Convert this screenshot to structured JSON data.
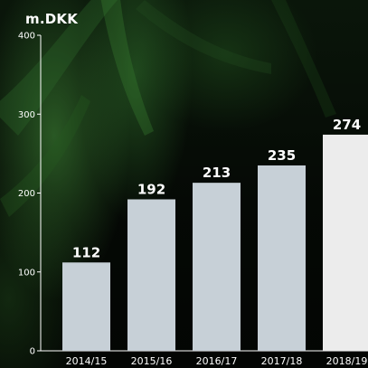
{
  "chart_data": {
    "type": "bar",
    "unit_label": "m.DKK",
    "categories": [
      "2014/15",
      "2015/16",
      "2016/17",
      "2017/18",
      "2018/19"
    ],
    "values": [
      112,
      192,
      213,
      235,
      274
    ],
    "ylim": [
      0,
      400
    ],
    "yticks": [
      0,
      100,
      200,
      300,
      400
    ],
    "grid": false,
    "bar_colors": [
      "#c7d0d7",
      "#c7d0d7",
      "#c7d0d7",
      "#c7d0d7",
      "#ececec"
    ],
    "axis_color": "#ffffff",
    "text_color": "#ffffff"
  }
}
